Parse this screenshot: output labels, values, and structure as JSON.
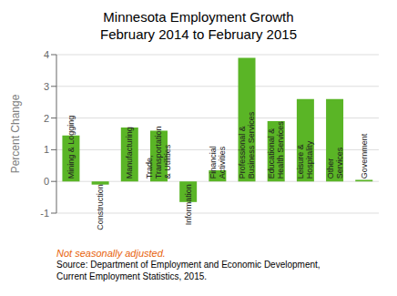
{
  "chart_data": {
    "type": "bar",
    "title": "Minnesota Employment Growth\nFebruary 2014 to February 2015",
    "categories": [
      "Mining & Logging",
      "Construction",
      "Manufacturing",
      "Trade,\nTransportation\n& Utilities",
      "Information",
      "Financial\nActivities",
      "Professional &\nBusiness Services",
      "Educational &\nHealth Services",
      "Leisure &\nHospitality",
      "Other\nServices",
      "Government"
    ],
    "values": [
      1.45,
      -0.1,
      1.7,
      1.6,
      -0.65,
      0.35,
      3.9,
      1.9,
      2.6,
      2.6,
      0.05
    ],
    "color": "#5ab526",
    "ylabel": "Percent Change",
    "ylim": [
      -1.0,
      4.0
    ],
    "yticks": [
      -1.0,
      0.0,
      1.0,
      2.0,
      3.0,
      4.0
    ],
    "grid": true,
    "note": "Not seasonally adjusted.",
    "source": "Source: Department of Employment and Economic Development,\nCurrent Employment Statistics, 2015."
  }
}
